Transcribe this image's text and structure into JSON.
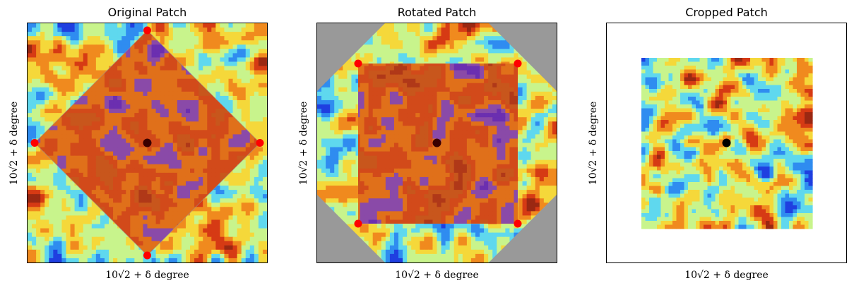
{
  "panels": [
    {
      "title": "Original Patch",
      "xlabel": "10√2 + δ  degree",
      "ylabel": "10√2 + δ  degree"
    },
    {
      "title": "Rotated Patch",
      "xlabel": "10√2 + δ  degree",
      "ylabel": "10√2 + δ  degree"
    },
    {
      "title": "Cropped Patch",
      "xlabel": "10√2 + δ  degree",
      "ylabel": "10√2 + δ  degree"
    }
  ],
  "colors": {
    "map_palette": [
      "#1f3fe0",
      "#2f8cf0",
      "#5fd8ee",
      "#c8f48c",
      "#f5d83a",
      "#f08a1e",
      "#d63a14",
      "#9a2812"
    ],
    "highlight_palette": [
      "#6b2fb0",
      "#8a4aa8",
      "#e0701a",
      "#d24a1a",
      "#c8561c",
      "#b03818"
    ],
    "masked_region": "#999999",
    "corner_marker": "#ff0000",
    "center_marker": "#3a0000",
    "center_marker_cropped": "#000000"
  }
}
